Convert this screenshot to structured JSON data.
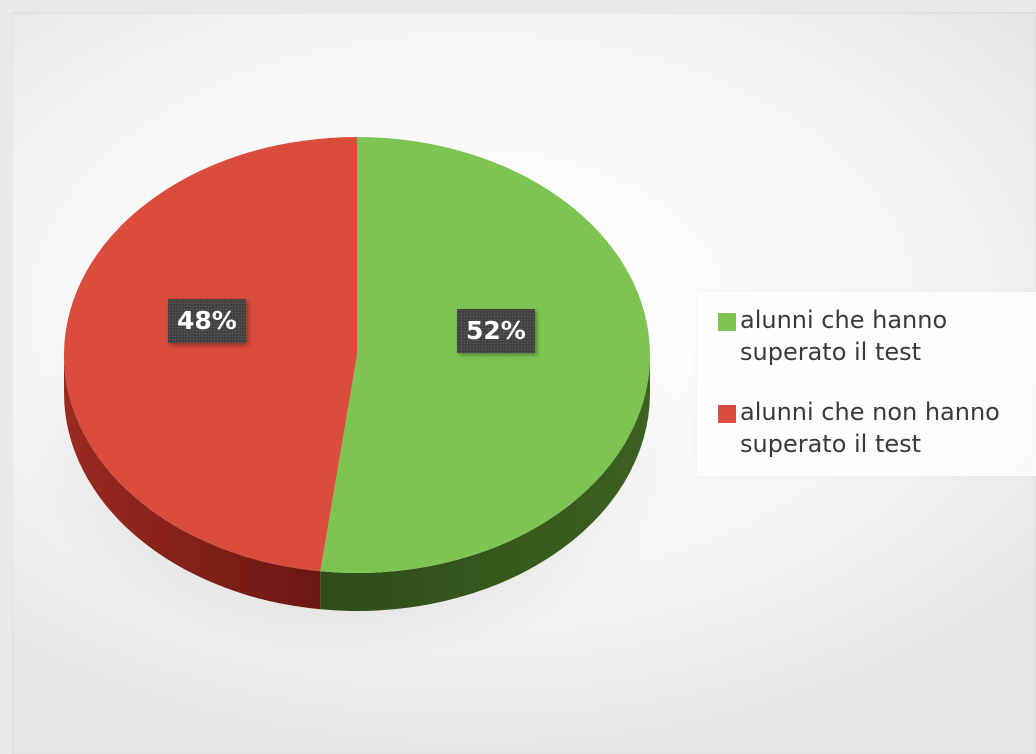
{
  "chart_data": {
    "type": "pie",
    "title": "",
    "style": "3d",
    "legend_position": "right",
    "series": [
      {
        "labels": [
          "alunni che hanno superato il test",
          "alunni che non hanno superato il test"
        ],
        "values": [
          52,
          48
        ],
        "data_labels": [
          "52%",
          "48%"
        ],
        "colors": [
          "#7ec453",
          "#da4c3b"
        ]
      }
    ]
  },
  "legend": {
    "items": [
      {
        "label": "alunni che hanno superato il test",
        "color": "#7ec453"
      },
      {
        "label": "alunni che non hanno superato il test",
        "color": "#da4c3b"
      }
    ]
  }
}
